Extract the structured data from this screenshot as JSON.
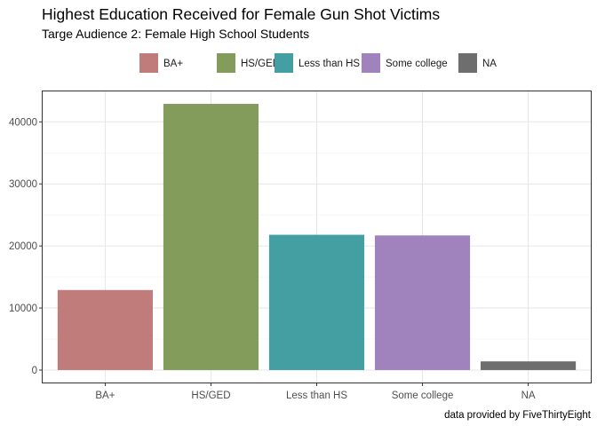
{
  "chart_data": {
    "type": "bar",
    "title": "Highest Education Received for Female Gun Shot Victims",
    "subtitle": "Targe Audience 2: Female High School Students",
    "caption": "data provided by FiveThirtyEight",
    "xlabel": "",
    "ylabel": "",
    "categories": [
      "BA+",
      "HS/GED",
      "Less than HS",
      "Some college",
      "NA"
    ],
    "values": [
      12900,
      42900,
      21800,
      21700,
      1400
    ],
    "colors": [
      "#C07C7A",
      "#839C5C",
      "#439FA1",
      "#A083BD",
      "#6E6E6E"
    ],
    "ylim": [
      -2150,
      45050
    ],
    "yticks": [
      0,
      10000,
      20000,
      30000,
      40000
    ],
    "ytick_labels": [
      "0",
      "10000",
      "20000",
      "30000",
      "40000"
    ],
    "legend": {
      "position": "top",
      "entries": [
        "BA+",
        "HS/GED",
        "Less than HS",
        "Some college",
        "NA"
      ]
    },
    "grid": true
  }
}
